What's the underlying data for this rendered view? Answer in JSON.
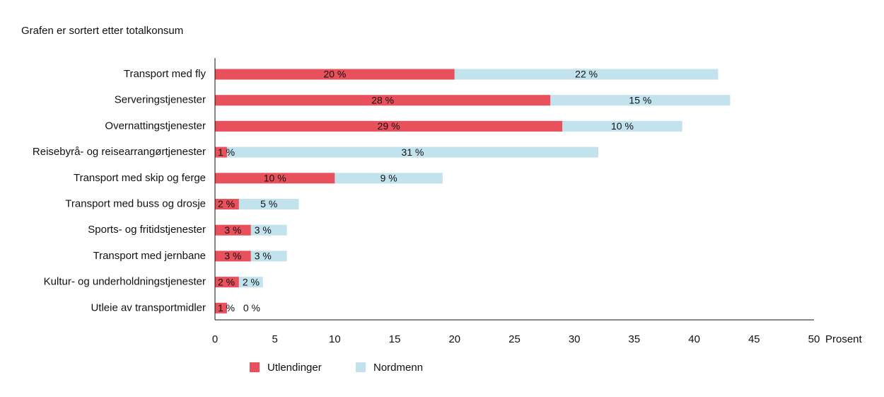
{
  "chart_data": {
    "type": "bar",
    "orientation": "horizontal",
    "stacked": true,
    "subtitle": "Grafen er sortert etter totalkonsum",
    "categories": [
      "Transport med fly",
      "Serveringstjenester",
      "Overnattingstjenester",
      "Reisebyrå- og reisearrangørtjenester",
      "Transport med skip og ferge",
      "Transport med buss og drosje",
      "Sports- og fritidstjenester",
      "Transport med jernbane",
      "Kultur- og underholdningstjenester",
      "Utleie av transportmidler"
    ],
    "series": [
      {
        "name": "Utlendinger",
        "color": "#e8505b",
        "values": [
          20,
          28,
          29,
          1,
          10,
          2,
          3,
          3,
          2,
          1
        ],
        "labels": [
          "20 %",
          "28 %",
          "29 %",
          "1 %",
          "10 %",
          "2 %",
          "3 %",
          "3 %",
          "2 %",
          "1 %"
        ]
      },
      {
        "name": "Nordmenn",
        "color": "#c2e3ee",
        "values": [
          22,
          15,
          10,
          31,
          9,
          5,
          3,
          3,
          2,
          0
        ],
        "labels": [
          "22 %",
          "15 %",
          "10 %",
          "31 %",
          "9 %",
          "5 %",
          "3 %",
          "3 %",
          "2 %",
          "0 %"
        ]
      }
    ],
    "xlim": [
      0,
      50
    ],
    "xticks": [
      "0",
      "5",
      "10",
      "15",
      "20",
      "25",
      "30",
      "35",
      "40",
      "45",
      "50"
    ],
    "xlabel": "Prosent",
    "grid": false,
    "legend_position": "bottom"
  }
}
